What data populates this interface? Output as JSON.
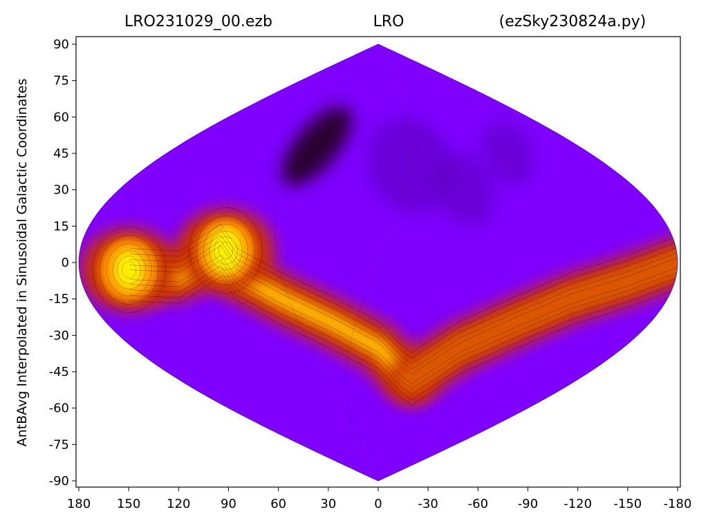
{
  "chart_data": {
    "type": "heatmap",
    "title_left": "LRO231029_00.ezb",
    "title_center": "LRO",
    "title_right": "(ezSky230824a.py)",
    "ylabel": "AntBAvg Interpolated in Sinusoidal Galactic Coordinates",
    "xlabel": "",
    "projection": "sinusoidal",
    "xlim": [
      180,
      -180
    ],
    "ylim": [
      -90,
      90
    ],
    "x_ticks": [
      180,
      150,
      120,
      90,
      60,
      30,
      0,
      -30,
      -60,
      -90,
      -120,
      -150,
      -180
    ],
    "y_ticks": [
      90,
      75,
      60,
      45,
      30,
      15,
      0,
      -15,
      -30,
      -45,
      -60,
      -75,
      -90
    ],
    "colormap": "gnuplot",
    "colors": {
      "background": "#7f00ff",
      "low": "#2a0030",
      "mid": "#cc3300",
      "high": "#ffee00"
    },
    "features": [
      {
        "kind": "plane",
        "path": [
          [
            150,
            -5
          ],
          [
            120,
            -6
          ],
          [
            95,
            5
          ],
          [
            85,
            -5
          ],
          [
            60,
            -15
          ],
          [
            30,
            -25
          ],
          [
            0,
            -35
          ],
          [
            -20,
            -45
          ],
          [
            -30,
            -48
          ]
        ]
      },
      {
        "kind": "plane",
        "path": [
          [
            -30,
            -48
          ],
          [
            -60,
            -35
          ],
          [
            -90,
            -25
          ],
          [
            -120,
            -15
          ],
          [
            -150,
            -8
          ],
          [
            -180,
            0
          ]
        ]
      },
      {
        "kind": "blob",
        "lon": 92,
        "lat": 5,
        "value": 1.0
      },
      {
        "kind": "blob",
        "lon": 150,
        "lat": -3,
        "value": 0.85
      },
      {
        "kind": "dark",
        "lon": 55,
        "lat": 48,
        "value": 0.0
      }
    ]
  }
}
